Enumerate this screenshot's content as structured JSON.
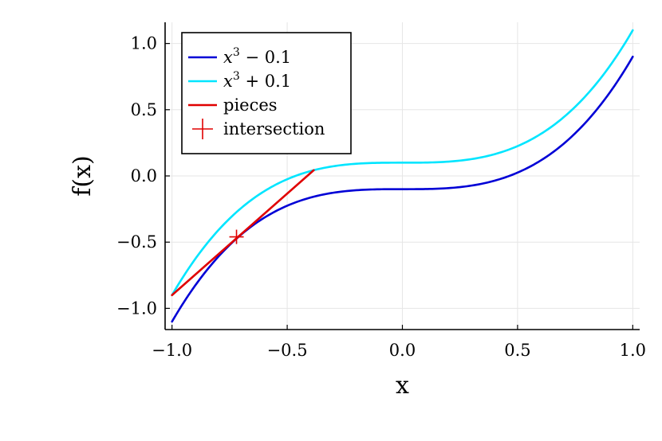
{
  "chart_data": {
    "type": "line",
    "title": "",
    "xlabel": "x",
    "ylabel": "f(x)",
    "xlim": [
      -1.03,
      1.03
    ],
    "ylim": [
      -1.16,
      1.16
    ],
    "xticks": [
      -1.0,
      -0.5,
      0.0,
      0.5,
      1.0
    ],
    "xtick_labels": [
      "−1.0",
      "−0.5",
      "0.0",
      "0.5",
      "1.0"
    ],
    "yticks": [
      -1.0,
      -0.5,
      0.0,
      0.5,
      1.0
    ],
    "ytick_labels": [
      "−1.0",
      "−0.5",
      "0.0",
      "0.5",
      "1.0"
    ],
    "grid": true,
    "legend_position": "top-left",
    "series": [
      {
        "name": "x^3 − 0.1",
        "legend_base": "x",
        "legend_exp": "3",
        "legend_rest": " − 0.1",
        "kind": "line",
        "color": "#0000d6",
        "function": "cube_minus",
        "x_range": [
          -1.0,
          1.0
        ],
        "x": [
          -1.0,
          -0.75,
          -0.5,
          -0.25,
          0.0,
          0.25,
          0.5,
          0.75,
          1.0
        ],
        "y": [
          -1.1,
          -0.522,
          -0.225,
          -0.116,
          -0.1,
          -0.084,
          0.025,
          0.322,
          0.9
        ]
      },
      {
        "name": "x^3 + 0.1",
        "legend_base": "x",
        "legend_exp": "3",
        "legend_rest": " + 0.1",
        "kind": "line",
        "color": "#00e5ff",
        "function": "cube_plus",
        "x_range": [
          -1.0,
          1.0
        ],
        "x": [
          -1.0,
          -0.75,
          -0.5,
          -0.25,
          0.0,
          0.25,
          0.5,
          0.75,
          1.0
        ],
        "y": [
          -0.9,
          -0.322,
          -0.025,
          0.084,
          0.1,
          0.116,
          0.225,
          0.522,
          1.1
        ]
      },
      {
        "name": "pieces",
        "kind": "line",
        "color": "#e00000",
        "x": [
          -1.0,
          -0.385
        ],
        "y": [
          -0.9,
          0.043
        ]
      },
      {
        "name": "intersection",
        "kind": "marker",
        "marker": "+",
        "color": "#e00000",
        "x": [
          -0.72
        ],
        "y": [
          -0.46
        ]
      }
    ]
  }
}
